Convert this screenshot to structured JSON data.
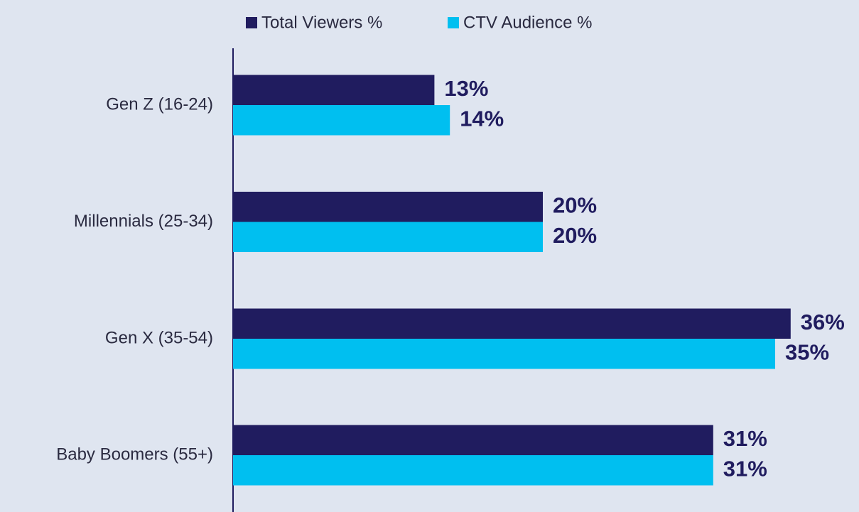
{
  "chart_data": {
    "type": "bar",
    "orientation": "horizontal",
    "categories": [
      "Gen Z (16-24)",
      "Millennials (25-34)",
      "Gen X (35-54)",
      "Baby Boomers (55+)"
    ],
    "series": [
      {
        "name": "Total Viewers %",
        "color": "#201c5f",
        "values": [
          13,
          20,
          36,
          31
        ],
        "value_labels": [
          "13%",
          "20%",
          "36%",
          "31%"
        ]
      },
      {
        "name": "CTV Audience %",
        "color": "#00bff0",
        "values": [
          14,
          20,
          35,
          31
        ],
        "value_labels": [
          "14%",
          "20%",
          "35%",
          "31%"
        ]
      }
    ],
    "legend": "top"
  }
}
